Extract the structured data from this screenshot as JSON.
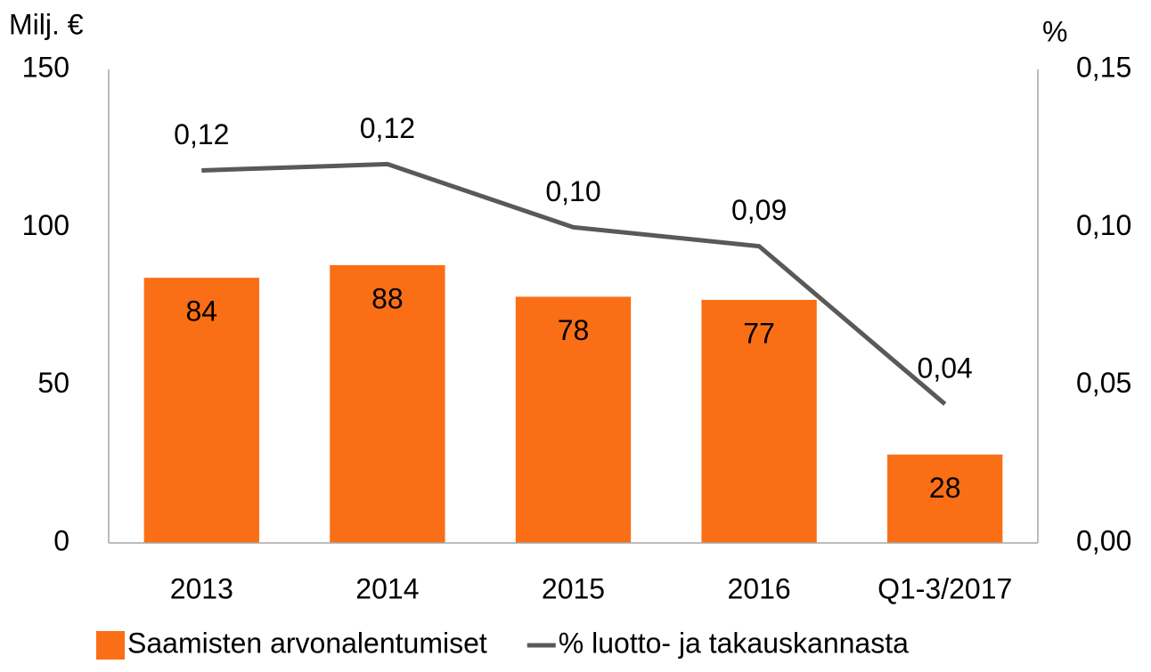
{
  "chart_data": {
    "type": "bar_line",
    "y_label": "Milj. €",
    "y2_label": "%",
    "categories": [
      "2013",
      "2014",
      "2015",
      "2016",
      "Q1-3/2017"
    ],
    "series": [
      {
        "name": "Saamisten arvonalentumiset",
        "type": "bar",
        "color": "#fa6e16",
        "values": [
          84,
          88,
          78,
          77,
          28
        ]
      },
      {
        "name": "% luotto- ja takauskannasta",
        "type": "line",
        "axis": "y2",
        "color": "#595959",
        "values": [
          0.118,
          0.12,
          0.1,
          0.094,
          0.044
        ],
        "value_labels": [
          "0,12",
          "0,12",
          "0,10",
          "0,09",
          "0,04"
        ]
      }
    ],
    "ylim": [
      0,
      150
    ],
    "yticks": [
      0,
      50,
      100,
      150
    ],
    "y2lim": [
      0,
      0.15
    ],
    "y2ticks": [
      {
        "value": 0,
        "label": "0,00"
      },
      {
        "value": 0.05,
        "label": "0,05"
      },
      {
        "value": 0.1,
        "label": "0,10"
      },
      {
        "value": 0.15,
        "label": "0,15"
      }
    ],
    "grid": false,
    "legend": "bottom"
  }
}
